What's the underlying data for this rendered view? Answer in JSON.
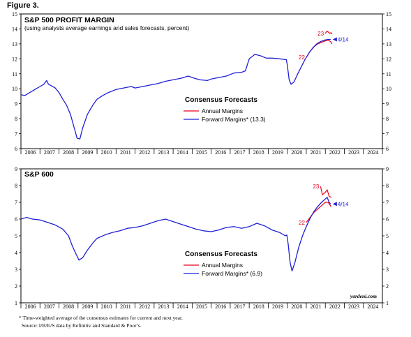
{
  "figure_label": "Figure 3.",
  "colors": {
    "annual": "#e8001c",
    "forward": "#1f1fd6",
    "axis": "#000000"
  },
  "footnote": "* Time-weighted average of the consensus estimates for current and next year.",
  "source": "Source: I/B/E/S data by Refinitiv and Standard & Poor’s.",
  "credit": "yardeni.com",
  "chart_data": [
    {
      "type": "line",
      "title": "S&P 500 PROFIT MARGIN",
      "subtitle": "(using analysts average earnings and sales forecasts, percent)",
      "xlim": [
        2006,
        2025
      ],
      "ylim": [
        6,
        15
      ],
      "yticks": [
        "6",
        "7",
        "8",
        "9",
        "10",
        "11",
        "12",
        "13",
        "14",
        "15"
      ],
      "xticks": [
        "2006",
        "2007",
        "2008",
        "2009",
        "2010",
        "2011",
        "2012",
        "2013",
        "2014",
        "2015",
        "2016",
        "2017",
        "2018",
        "2019",
        "2020",
        "2021",
        "2022",
        "2023",
        "2024"
      ],
      "legend_title": "Consensus Forecasts",
      "grid": false,
      "series": [
        {
          "name": "Annual Margins",
          "color": "#e8001c",
          "segments": [
            {
              "label": "22",
              "points": [
                [
                  2021.0,
                  12.1
                ],
                [
                  2021.2,
                  12.5
                ],
                [
                  2021.4,
                  12.8
                ],
                [
                  2021.6,
                  13.0
                ],
                [
                  2021.8,
                  13.1
                ],
                [
                  2022.0,
                  13.2
                ],
                [
                  2022.15,
                  13.25
                ],
                [
                  2022.28,
                  13.15
                ],
                [
                  2022.35,
                  13.0
                ]
              ]
            },
            {
              "label": "23",
              "points": [
                [
                  2022.0,
                  13.7
                ],
                [
                  2022.08,
                  13.85
                ],
                [
                  2022.15,
                  13.8
                ],
                [
                  2022.22,
                  13.7
                ],
                [
                  2022.3,
                  13.75
                ],
                [
                  2022.36,
                  13.65
                ]
              ]
            }
          ]
        },
        {
          "name": "Forward Margins* (13.3)",
          "color": "#1f1fd6",
          "end_label": "4/14",
          "points": [
            [
              2006.0,
              9.6
            ],
            [
              2006.2,
              9.55
            ],
            [
              2006.4,
              9.7
            ],
            [
              2006.6,
              9.85
            ],
            [
              2006.8,
              10.0
            ],
            [
              2007.0,
              10.15
            ],
            [
              2007.2,
              10.3
            ],
            [
              2007.35,
              10.55
            ],
            [
              2007.45,
              10.3
            ],
            [
              2007.6,
              10.2
            ],
            [
              2007.8,
              10.05
            ],
            [
              2008.0,
              9.75
            ],
            [
              2008.2,
              9.3
            ],
            [
              2008.4,
              8.9
            ],
            [
              2008.6,
              8.3
            ],
            [
              2008.8,
              7.4
            ],
            [
              2008.95,
              6.7
            ],
            [
              2009.1,
              6.65
            ],
            [
              2009.25,
              7.4
            ],
            [
              2009.5,
              8.3
            ],
            [
              2009.8,
              8.95
            ],
            [
              2010.0,
              9.3
            ],
            [
              2010.3,
              9.55
            ],
            [
              2010.6,
              9.75
            ],
            [
              2011.0,
              9.95
            ],
            [
              2011.4,
              10.05
            ],
            [
              2011.8,
              10.15
            ],
            [
              2012.0,
              10.05
            ],
            [
              2012.4,
              10.15
            ],
            [
              2012.8,
              10.25
            ],
            [
              2013.2,
              10.35
            ],
            [
              2013.6,
              10.5
            ],
            [
              2014.0,
              10.6
            ],
            [
              2014.4,
              10.7
            ],
            [
              2014.8,
              10.85
            ],
            [
              2015.0,
              10.75
            ],
            [
              2015.4,
              10.6
            ],
            [
              2015.8,
              10.55
            ],
            [
              2016.0,
              10.65
            ],
            [
              2016.4,
              10.75
            ],
            [
              2016.8,
              10.85
            ],
            [
              2017.2,
              11.05
            ],
            [
              2017.6,
              11.1
            ],
            [
              2017.8,
              11.2
            ],
            [
              2017.9,
              11.6
            ],
            [
              2018.0,
              12.0
            ],
            [
              2018.3,
              12.3
            ],
            [
              2018.6,
              12.2
            ],
            [
              2018.9,
              12.05
            ],
            [
              2019.2,
              12.05
            ],
            [
              2019.6,
              12.0
            ],
            [
              2019.9,
              11.95
            ],
            [
              2019.95,
              11.95
            ],
            [
              2020.0,
              11.6
            ],
            [
              2020.1,
              10.6
            ],
            [
              2020.2,
              10.3
            ],
            [
              2020.35,
              10.45
            ],
            [
              2020.55,
              11.0
            ],
            [
              2020.75,
              11.5
            ],
            [
              2020.95,
              12.0
            ],
            [
              2021.15,
              12.4
            ],
            [
              2021.35,
              12.75
            ],
            [
              2021.55,
              13.0
            ],
            [
              2021.75,
              13.15
            ],
            [
              2021.95,
              13.25
            ],
            [
              2022.15,
              13.3
            ],
            [
              2022.28,
              13.3
            ]
          ]
        }
      ]
    },
    {
      "type": "line",
      "title": "S&P 600",
      "xlim": [
        2006,
        2025
      ],
      "ylim": [
        1,
        9
      ],
      "yticks": [
        "1",
        "2",
        "3",
        "4",
        "5",
        "6",
        "7",
        "8",
        "9"
      ],
      "xticks": [
        "2006",
        "2007",
        "2008",
        "2009",
        "2010",
        "2011",
        "2012",
        "2013",
        "2014",
        "2015",
        "2016",
        "2017",
        "2018",
        "2019",
        "2020",
        "2021",
        "2022",
        "2023",
        "2024"
      ],
      "legend_title": "Consensus Forecasts",
      "grid": false,
      "series": [
        {
          "name": "Annual Margins",
          "color": "#e8001c",
          "segments": [
            {
              "label": "22",
              "points": [
                [
                  2021.0,
                  5.8
                ],
                [
                  2021.2,
                  6.1
                ],
                [
                  2021.4,
                  6.4
                ],
                [
                  2021.6,
                  6.6
                ],
                [
                  2021.8,
                  6.8
                ],
                [
                  2022.0,
                  7.0
                ],
                [
                  2022.15,
                  7.0
                ],
                [
                  2022.3,
                  6.75
                ]
              ]
            },
            {
              "label": "23",
              "points": [
                [
                  2021.75,
                  7.95
                ],
                [
                  2021.85,
                  7.45
                ],
                [
                  2022.0,
                  7.6
                ],
                [
                  2022.1,
                  7.75
                ],
                [
                  2022.2,
                  7.35
                ],
                [
                  2022.33,
                  7.3
                ]
              ]
            }
          ]
        },
        {
          "name": "Forward Margins* (6.9)",
          "color": "#1f1fd6",
          "end_label": "4/14",
          "points": [
            [
              2006.0,
              6.0
            ],
            [
              2006.3,
              6.1
            ],
            [
              2006.6,
              6.0
            ],
            [
              2007.0,
              5.95
            ],
            [
              2007.4,
              5.8
            ],
            [
              2007.8,
              5.65
            ],
            [
              2008.2,
              5.4
            ],
            [
              2008.5,
              5.0
            ],
            [
              2008.7,
              4.4
            ],
            [
              2008.9,
              3.9
            ],
            [
              2009.05,
              3.55
            ],
            [
              2009.25,
              3.7
            ],
            [
              2009.5,
              4.15
            ],
            [
              2009.8,
              4.6
            ],
            [
              2010.0,
              4.85
            ],
            [
              2010.4,
              5.05
            ],
            [
              2010.8,
              5.2
            ],
            [
              2011.2,
              5.3
            ],
            [
              2011.6,
              5.45
            ],
            [
              2012.0,
              5.5
            ],
            [
              2012.4,
              5.6
            ],
            [
              2012.8,
              5.75
            ],
            [
              2013.2,
              5.9
            ],
            [
              2013.6,
              6.0
            ],
            [
              2014.0,
              5.85
            ],
            [
              2014.4,
              5.7
            ],
            [
              2014.8,
              5.55
            ],
            [
              2015.2,
              5.4
            ],
            [
              2015.6,
              5.3
            ],
            [
              2016.0,
              5.25
            ],
            [
              2016.4,
              5.35
            ],
            [
              2016.8,
              5.5
            ],
            [
              2017.2,
              5.55
            ],
            [
              2017.6,
              5.45
            ],
            [
              2018.0,
              5.55
            ],
            [
              2018.4,
              5.75
            ],
            [
              2018.8,
              5.6
            ],
            [
              2019.2,
              5.35
            ],
            [
              2019.6,
              5.2
            ],
            [
              2019.9,
              5.0
            ],
            [
              2019.98,
              5.05
            ],
            [
              2020.05,
              4.5
            ],
            [
              2020.15,
              3.4
            ],
            [
              2020.25,
              2.9
            ],
            [
              2020.4,
              3.4
            ],
            [
              2020.6,
              4.3
            ],
            [
              2020.8,
              5.0
            ],
            [
              2021.0,
              5.55
            ],
            [
              2021.2,
              6.05
            ],
            [
              2021.4,
              6.45
            ],
            [
              2021.6,
              6.75
            ],
            [
              2021.8,
              7.0
            ],
            [
              2022.0,
              7.2
            ],
            [
              2022.1,
              7.3
            ],
            [
              2022.2,
              7.0
            ],
            [
              2022.28,
              6.9
            ]
          ]
        }
      ]
    }
  ]
}
